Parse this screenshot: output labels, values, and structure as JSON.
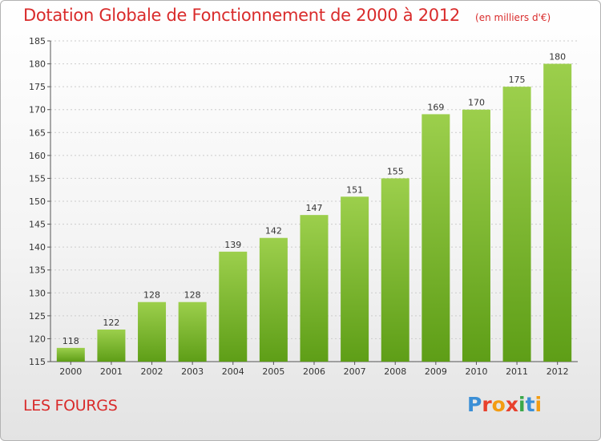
{
  "header": {
    "title": "Dotation Globale de Fonctionnement de 2000 à 2012",
    "unit": "(en milliers d'€)"
  },
  "footer": {
    "place": "LES FOURGS",
    "logo": "Proxiti",
    "logo_colors": [
      "#3b8fd6",
      "#e8412d",
      "#f39c12",
      "#e8412d",
      "#3aa84a",
      "#3b8fd6",
      "#f39c12"
    ]
  },
  "colors": {
    "bar_top": "#9ccf4c",
    "bar_bottom": "#5e9e17",
    "grid": "#cccccc",
    "axis": "#555555"
  },
  "chart_data": {
    "type": "bar",
    "title": "Dotation Globale de Fonctionnement de 2000 à 2012",
    "subtitle": "(en milliers d'€)",
    "xlabel": "",
    "ylabel": "",
    "categories": [
      "2000",
      "2001",
      "2002",
      "2003",
      "2004",
      "2005",
      "2006",
      "2007",
      "2008",
      "2009",
      "2010",
      "2011",
      "2012"
    ],
    "values": [
      118,
      122,
      128,
      128,
      139,
      142,
      147,
      151,
      155,
      169,
      170,
      175,
      180
    ],
    "ylim": [
      115,
      185
    ],
    "yticks": [
      115,
      120,
      125,
      130,
      135,
      140,
      145,
      150,
      155,
      160,
      165,
      170,
      175,
      180,
      185
    ],
    "grid": true,
    "legend": "none"
  }
}
